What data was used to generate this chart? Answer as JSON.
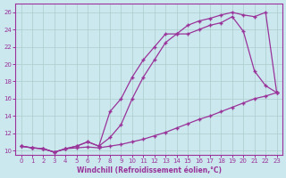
{
  "xlabel": "Windchill (Refroidissement éolien,°C)",
  "background_color": "#cce8ef",
  "grid_color": "#aacccc",
  "line_color": "#993399",
  "xlim": [
    -0.5,
    23.5
  ],
  "ylim": [
    9.5,
    27
  ],
  "xticks": [
    0,
    1,
    2,
    3,
    4,
    5,
    6,
    7,
    8,
    9,
    10,
    11,
    12,
    13,
    14,
    15,
    16,
    17,
    18,
    19,
    20,
    21,
    22,
    23
  ],
  "yticks": [
    10,
    12,
    14,
    16,
    18,
    20,
    22,
    24,
    26
  ],
  "series1_x": [
    0,
    1,
    2,
    3,
    4,
    5,
    6,
    7,
    8,
    9,
    10,
    11,
    12,
    13,
    14,
    15,
    16,
    17,
    18,
    19,
    20,
    21,
    22,
    23
  ],
  "series1_y": [
    10.5,
    10.3,
    10.2,
    9.8,
    10.2,
    10.3,
    10.4,
    10.3,
    10.5,
    10.7,
    11.0,
    11.3,
    11.7,
    12.1,
    12.6,
    13.1,
    13.6,
    14.0,
    14.5,
    15.0,
    15.5,
    16.0,
    16.3,
    16.7
  ],
  "series2_x": [
    0,
    1,
    2,
    3,
    4,
    5,
    6,
    7,
    8,
    9,
    10,
    11,
    12,
    13,
    14,
    15,
    16,
    17,
    18,
    19,
    20,
    21,
    22,
    23
  ],
  "series2_y": [
    10.5,
    10.3,
    10.2,
    9.8,
    10.2,
    10.5,
    11.0,
    10.5,
    14.5,
    16.0,
    18.5,
    20.5,
    22.0,
    23.5,
    23.5,
    24.5,
    25.0,
    25.3,
    25.7,
    26.0,
    25.7,
    25.5,
    26.0,
    16.7
  ],
  "series3_x": [
    0,
    1,
    2,
    3,
    4,
    5,
    6,
    7,
    8,
    9,
    10,
    11,
    12,
    13,
    14,
    15,
    16,
    17,
    18,
    19,
    20,
    21,
    22,
    23
  ],
  "series3_y": [
    10.5,
    10.3,
    10.2,
    9.8,
    10.2,
    10.5,
    11.0,
    10.5,
    11.5,
    13.0,
    16.0,
    18.5,
    20.5,
    22.5,
    23.5,
    23.5,
    24.0,
    24.5,
    24.8,
    25.5,
    23.8,
    19.2,
    17.5,
    16.7
  ]
}
